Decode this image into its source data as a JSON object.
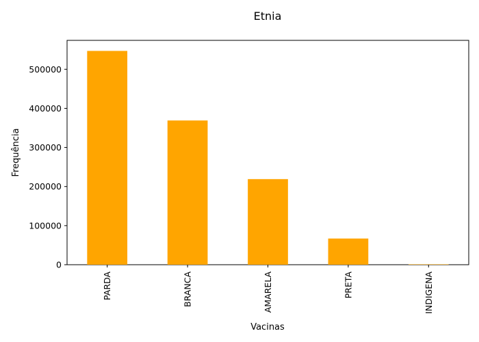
{
  "chart_data": {
    "type": "bar",
    "title": "Etnia",
    "xlabel": "Vacinas",
    "ylabel": "Frequência",
    "categories": [
      "PARDA",
      "BRANCA",
      "AMARELA",
      "PRETA",
      "INDIGENA"
    ],
    "values": [
      547000,
      369000,
      219000,
      67000,
      1000
    ],
    "ylim": [
      0,
      574000
    ],
    "yticks": [
      0,
      100000,
      200000,
      300000,
      400000,
      500000
    ],
    "bar_color": "#ffa500",
    "grid": false,
    "legend": "none"
  }
}
